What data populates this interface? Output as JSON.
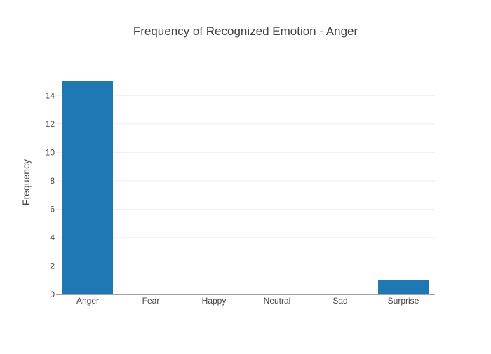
{
  "chart_data": {
    "type": "bar",
    "title": "Frequency of Recognized Emotion - Anger",
    "xlabel": "",
    "ylabel": "Frequency",
    "categories": [
      "Anger",
      "Fear",
      "Happy",
      "Neutral",
      "Sad",
      "Surprise"
    ],
    "values": [
      15,
      0,
      0,
      0,
      0,
      1
    ],
    "ylim": [
      0,
      15
    ],
    "yticks": [
      0,
      2,
      4,
      6,
      8,
      10,
      12,
      14
    ],
    "grid": true,
    "legend": "none",
    "colors": {
      "bar": "#1f77b4",
      "grid": "#eeeeee",
      "axis": "#444444",
      "text": "#444444"
    }
  }
}
